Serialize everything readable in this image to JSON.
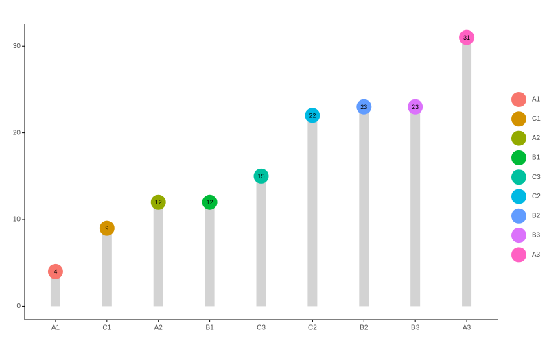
{
  "chart_data": {
    "type": "lollipop",
    "categories": [
      "A1",
      "C1",
      "A2",
      "B1",
      "C3",
      "C2",
      "B2",
      "B3",
      "A3"
    ],
    "values": [
      4,
      9,
      12,
      12,
      15,
      22,
      23,
      23,
      31
    ],
    "colors": [
      "#F8766D",
      "#D39200",
      "#93AA00",
      "#00BA38",
      "#00C19F",
      "#00B9E3",
      "#619CFF",
      "#DB72FB",
      "#FF61C3"
    ],
    "stem_color": "#d3d3d3",
    "ylim": [
      -1.55,
      32.55
    ],
    "yticks": [
      0,
      10,
      20,
      30
    ],
    "legend": "right"
  }
}
